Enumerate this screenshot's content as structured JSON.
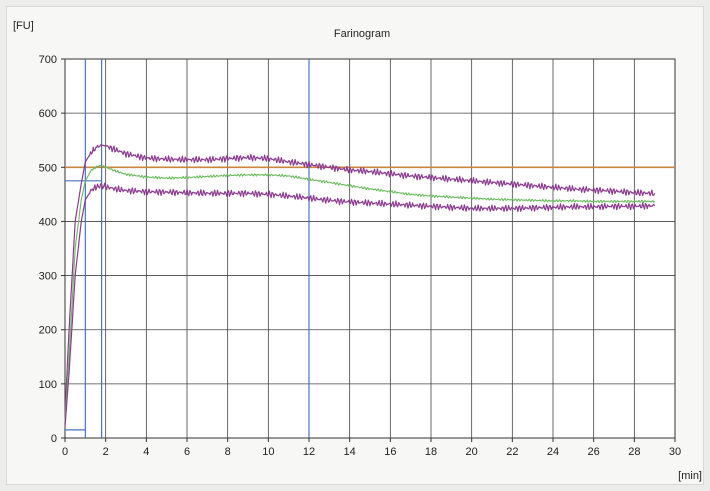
{
  "chart_data": {
    "type": "line",
    "title": "Farinogram",
    "ylabel": "[FU]",
    "xlabel": "[min]",
    "xlim": [
      0,
      30
    ],
    "ylim": [
      0,
      700
    ],
    "xticks": [
      0,
      2,
      4,
      6,
      8,
      10,
      12,
      14,
      16,
      18,
      20,
      22,
      24,
      26,
      28,
      30
    ],
    "yticks": [
      0,
      100,
      200,
      300,
      400,
      500,
      600,
      700
    ],
    "grid": true,
    "reference_lines": [
      {
        "orientation": "horizontal",
        "value": 500,
        "color": "#c9863c"
      },
      {
        "orientation": "vertical",
        "value": 1.0,
        "color": "#4a72c4"
      },
      {
        "orientation": "vertical",
        "value": 1.8,
        "color": "#4a72c4"
      },
      {
        "orientation": "vertical",
        "value": 12.0,
        "color": "#4a72c4"
      },
      {
        "orientation": "horizontal-segment",
        "value": 475,
        "x_range": [
          0,
          1.8
        ],
        "color": "#4a72c4"
      },
      {
        "orientation": "horizontal-segment",
        "value": 15,
        "x_range": [
          0,
          1.0
        ],
        "color": "#4a72c4"
      }
    ],
    "series": [
      {
        "color": "#8b3a8f",
        "x": [
          0,
          0.2,
          0.5,
          0.8,
          1.0,
          1.3,
          1.6,
          1.8,
          2.0,
          2.5,
          3,
          4,
          5,
          6,
          7,
          8,
          9,
          10,
          11,
          12,
          13,
          14,
          15,
          16,
          17,
          18,
          19,
          20,
          21,
          22,
          23,
          24,
          25,
          26,
          27,
          28,
          29
        ],
        "values": [
          40,
          200,
          400,
          470,
          510,
          528,
          538,
          541,
          540,
          532,
          525,
          517,
          515,
          514,
          514,
          516,
          518,
          516,
          510,
          505,
          500,
          495,
          492,
          488,
          484,
          481,
          478,
          475,
          472,
          469,
          466,
          463,
          460,
          458,
          456,
          453,
          452
        ]
      },
      {
        "color": "#66bb5a",
        "x": [
          0,
          0.2,
          0.5,
          0.8,
          1.0,
          1.3,
          1.6,
          1.8,
          2.0,
          2.5,
          3,
          4,
          5,
          6,
          7,
          8,
          9,
          10,
          11,
          12,
          13,
          14,
          15,
          16,
          17,
          18,
          19,
          20,
          21,
          22,
          23,
          24,
          25,
          26,
          27,
          28,
          29
        ],
        "values": [
          30,
          150,
          350,
          440,
          475,
          495,
          502,
          503,
          500,
          493,
          487,
          482,
          480,
          481,
          483,
          485,
          486,
          486,
          484,
          478,
          472,
          466,
          460,
          455,
          450,
          447,
          445,
          443,
          441,
          440,
          439,
          438,
          438,
          437,
          437,
          437,
          437
        ]
      },
      {
        "color": "#8b3a8f",
        "x": [
          0,
          0.2,
          0.5,
          0.8,
          1.0,
          1.3,
          1.6,
          1.8,
          2.0,
          2.5,
          3,
          4,
          5,
          6,
          7,
          8,
          9,
          10,
          11,
          12,
          13,
          14,
          15,
          16,
          17,
          18,
          19,
          20,
          21,
          22,
          23,
          24,
          25,
          26,
          27,
          28,
          29
        ],
        "values": [
          20,
          120,
          300,
          400,
          440,
          458,
          465,
          466,
          464,
          460,
          457,
          455,
          454,
          453,
          452,
          452,
          452,
          450,
          447,
          443,
          439,
          436,
          434,
          432,
          430,
          428,
          426,
          424,
          424,
          424,
          425,
          426,
          427,
          427,
          428,
          428,
          429
        ]
      }
    ]
  }
}
